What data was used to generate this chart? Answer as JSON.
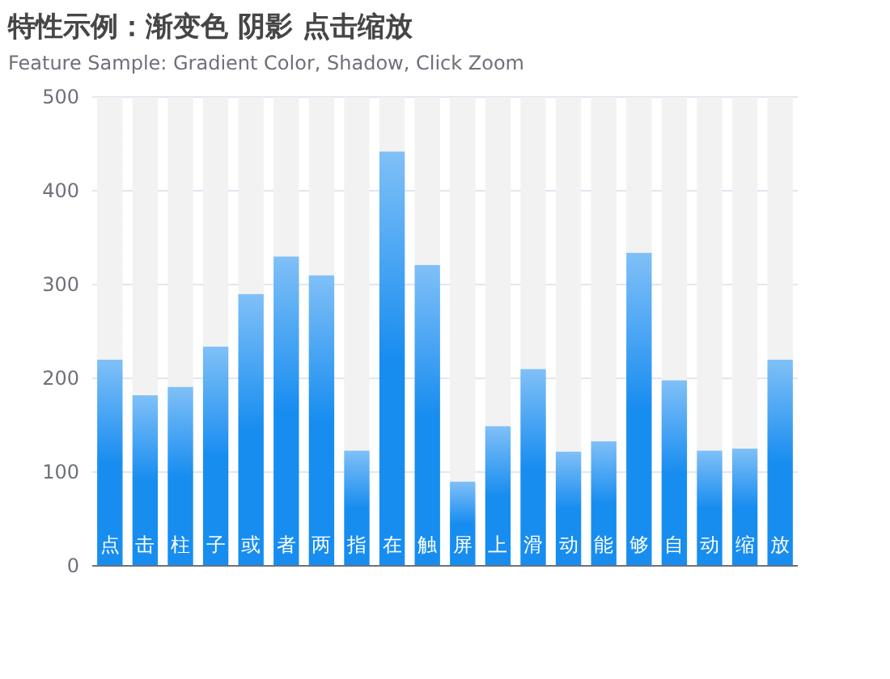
{
  "chart_data": {
    "type": "bar",
    "title": "特性示例：渐变色 阴影 点击缩放",
    "subtitle": "Feature Sample: Gradient Color, Shadow, Click Zoom",
    "categories": [
      "点",
      "击",
      "柱",
      "子",
      "或",
      "者",
      "两",
      "指",
      "在",
      "触",
      "屏",
      "上",
      "滑",
      "动",
      "能",
      "够",
      "自",
      "动",
      "缩",
      "放"
    ],
    "stacked": true,
    "series": [
      {
        "color": "#188df0",
        "values": [
          220,
          182,
          191,
          234,
          290,
          330,
          310,
          123,
          442,
          321,
          90,
          149,
          210,
          122,
          133,
          334,
          198,
          123,
          125,
          220
        ]
      },
      {
        "color": "#f2f2f2",
        "values": [
          280,
          318,
          309,
          266,
          210,
          170,
          190,
          377,
          58,
          179,
          410,
          351,
          290,
          378,
          367,
          166,
          302,
          377,
          375,
          280
        ]
      }
    ],
    "ylim": [
      0,
      500
    ],
    "yticks": [
      0,
      100,
      200,
      300,
      400,
      500
    ],
    "grid": "y"
  }
}
